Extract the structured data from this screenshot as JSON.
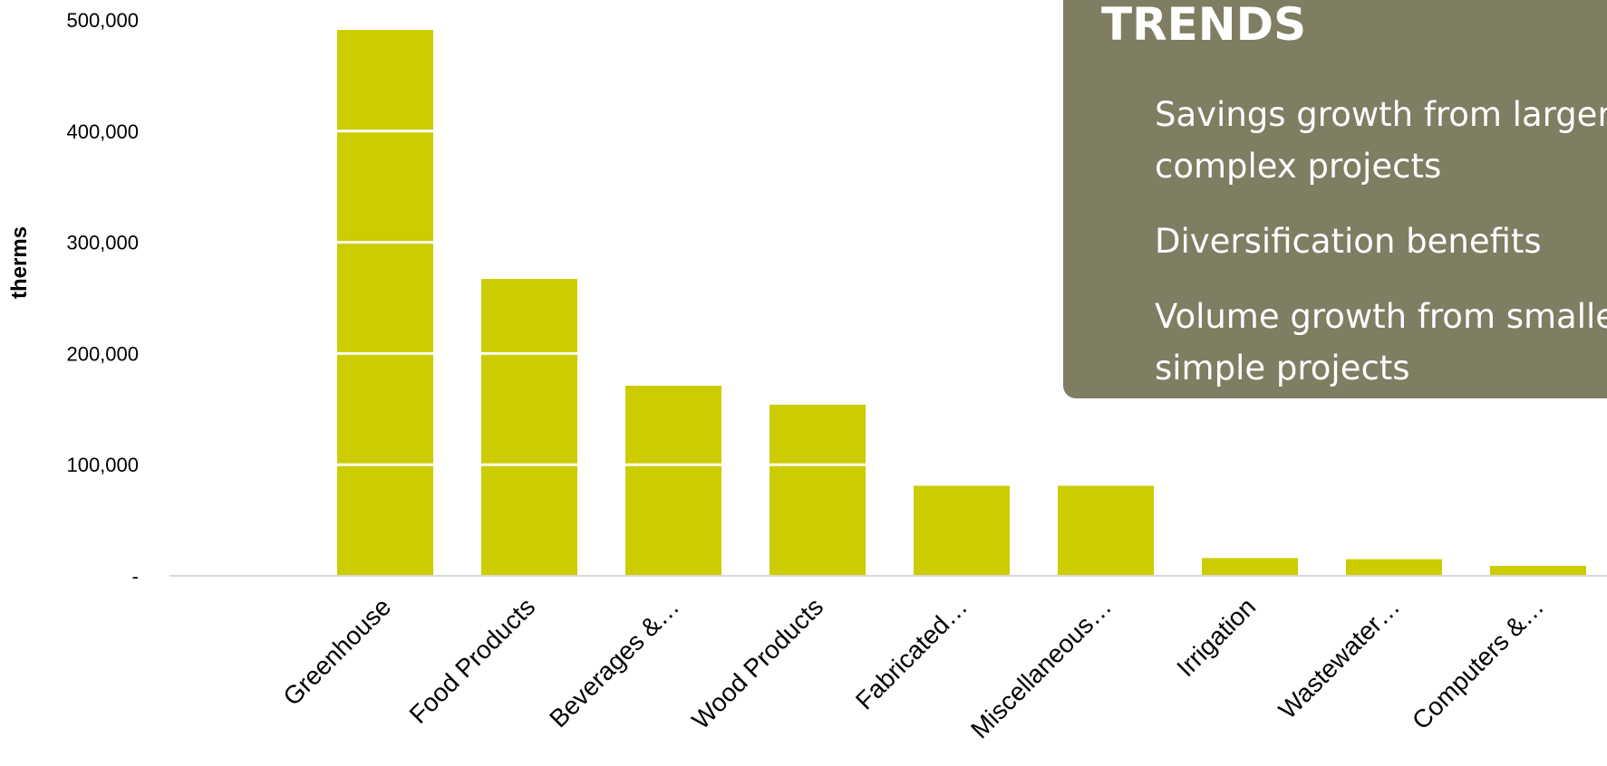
{
  "chart_data": {
    "type": "bar",
    "title": "",
    "xlabel": "",
    "ylabel": "therms",
    "ylim": [
      0,
      500000
    ],
    "yticks": [
      0,
      100000,
      200000,
      300000,
      400000,
      500000
    ],
    "ytick_labels": [
      "-",
      "100,000",
      "200,000",
      "300,000",
      "400,000",
      "500,000"
    ],
    "grid": "horizontal gridlines drawn in white over the bars",
    "categories": [
      "Greenhouse",
      "Food Products",
      "Beverages &…",
      "Wood Products",
      "Fabricated…",
      "Miscellaneous…",
      "Irrigation",
      "Wastewater…",
      "Computers &…"
    ],
    "values": [
      491000,
      267000,
      171000,
      154000,
      81000,
      81000,
      16000,
      15000,
      9000
    ]
  },
  "trends": {
    "title": "TRENDS",
    "items": [
      {
        "lines": [
          "Savings growth from larger,",
          "complex projects"
        ]
      },
      {
        "lines": [
          "Diversification benefits"
        ]
      },
      {
        "lines": [
          "Volume growth from smaller,",
          "simple projects"
        ]
      }
    ]
  },
  "colors": {
    "bar": "#cccc00",
    "panel": "#7f7d62",
    "axis": "#d9d9d9",
    "gridline": "#ffffff"
  }
}
